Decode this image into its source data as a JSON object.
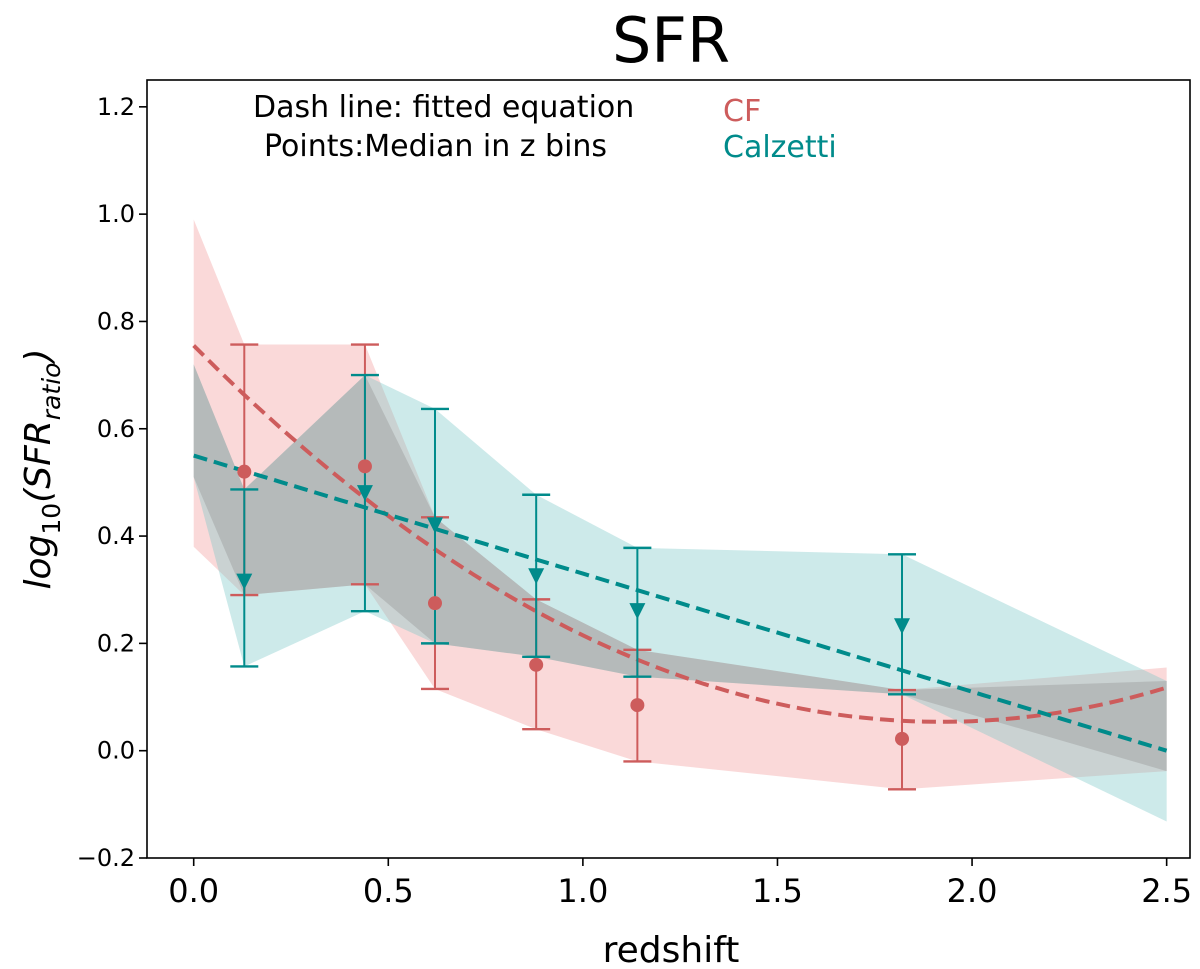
{
  "chart_data": {
    "type": "line",
    "title": "SFR",
    "xlabel": "redshift",
    "ylabel": {
      "base": "log",
      "base_sub": "10",
      "open": "(SFR",
      "sub": "ratio",
      "close": ")"
    },
    "xlim": [
      -0.12,
      2.56
    ],
    "ylim": [
      -0.2,
      1.25
    ],
    "xticks": [
      0.0,
      0.5,
      1.0,
      1.5,
      2.0,
      2.5
    ],
    "yticks": [
      -0.2,
      0.0,
      0.2,
      0.4,
      0.6,
      0.8,
      1.0,
      1.2
    ],
    "xtick_labels": [
      "0.0",
      "0.5",
      "1.0",
      "1.5",
      "2.0",
      "2.5"
    ],
    "ytick_labels": [
      "−0.2",
      "0.0",
      "0.2",
      "0.4",
      "0.6",
      "0.8",
      "1.0",
      "1.2"
    ],
    "grid": false,
    "annotations": {
      "line1": "Dash line: fitted equation",
      "line2": "Points:Median in z bins",
      "cf": "CF",
      "calzetti": "Calzetti"
    },
    "colors": {
      "cf": "#cd5c5c",
      "calzetti": "#008b8b",
      "cf_band": "#f08080",
      "calzetti_band": "#7cc8c8",
      "errorbar_overlap": "#5a6b68"
    },
    "series": [
      {
        "name": "CF",
        "marker": "circle",
        "x": [
          0.13,
          0.44,
          0.62,
          0.88,
          1.14,
          1.82
        ],
        "y": [
          0.52,
          0.53,
          0.275,
          0.16,
          0.085,
          0.022
        ],
        "err_low": [
          0.29,
          0.31,
          0.115,
          0.04,
          -0.02,
          -0.072
        ],
        "err_high": [
          0.757,
          0.757,
          0.435,
          0.282,
          0.188,
          0.113
        ],
        "band": {
          "x": [
            0.0,
            0.13,
            0.44,
            0.62,
            0.88,
            1.14,
            1.82,
            2.5
          ],
          "lower": [
            0.38,
            0.29,
            0.31,
            0.115,
            0.04,
            -0.02,
            -0.072,
            -0.038
          ],
          "upper": [
            0.99,
            0.757,
            0.757,
            0.435,
            0.282,
            0.188,
            0.113,
            0.155
          ]
        },
        "fit": {
          "type": "quadratic",
          "a": 0.19,
          "b": -0.73,
          "c": 0.755,
          "x_range": [
            0.0,
            2.5
          ]
        }
      },
      {
        "name": "Calzetti",
        "marker": "triangle-down",
        "x": [
          0.13,
          0.44,
          0.62,
          0.88,
          1.14,
          1.82
        ],
        "y": [
          0.315,
          0.48,
          0.42,
          0.325,
          0.26,
          0.232
        ],
        "err_low": [
          0.157,
          0.26,
          0.2,
          0.175,
          0.138,
          0.105
        ],
        "err_high": [
          0.487,
          0.7,
          0.637,
          0.477,
          0.378,
          0.366
        ],
        "band": {
          "x": [
            0.0,
            0.13,
            0.44,
            0.62,
            0.88,
            1.14,
            1.82,
            2.5
          ],
          "lower": [
            0.51,
            0.157,
            0.26,
            0.2,
            0.175,
            0.138,
            0.105,
            -0.132
          ],
          "upper": [
            0.72,
            0.487,
            0.7,
            0.637,
            0.477,
            0.378,
            0.366,
            0.13
          ]
        },
        "fit": {
          "type": "linear",
          "a": 0,
          "b": -0.22,
          "c": 0.55,
          "x_range": [
            0.0,
            2.5
          ]
        }
      }
    ]
  }
}
